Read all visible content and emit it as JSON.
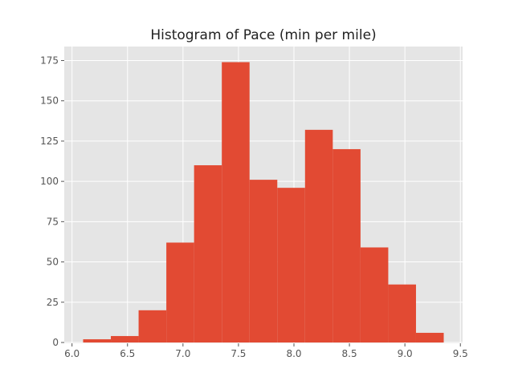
{
  "chart_data": {
    "type": "bar",
    "title": "Histogram of Pace (min per mile)",
    "xlabel": "",
    "ylabel": "",
    "xlim": [
      6.0,
      9.5
    ],
    "ylim": [
      0,
      180
    ],
    "grid": true,
    "legend": "none",
    "bins": [
      {
        "start": 6.1,
        "end": 6.35,
        "count": 2
      },
      {
        "start": 6.35,
        "end": 6.6,
        "count": 4
      },
      {
        "start": 6.6,
        "end": 6.85,
        "count": 20
      },
      {
        "start": 6.85,
        "end": 7.1,
        "count": 62
      },
      {
        "start": 7.1,
        "end": 7.35,
        "count": 110
      },
      {
        "start": 7.35,
        "end": 7.6,
        "count": 174
      },
      {
        "start": 7.6,
        "end": 7.85,
        "count": 101
      },
      {
        "start": 7.85,
        "end": 8.1,
        "count": 96
      },
      {
        "start": 8.1,
        "end": 8.35,
        "count": 132
      },
      {
        "start": 8.35,
        "end": 8.6,
        "count": 120
      },
      {
        "start": 8.6,
        "end": 8.85,
        "count": 59
      },
      {
        "start": 8.85,
        "end": 9.1,
        "count": 36
      },
      {
        "start": 9.1,
        "end": 9.35,
        "count": 6
      }
    ],
    "xticks": [
      "6.0",
      "6.5",
      "7.0",
      "7.5",
      "8.0",
      "8.5",
      "9.0",
      "9.5"
    ],
    "yticks": [
      "0",
      "25",
      "50",
      "75",
      "100",
      "125",
      "150",
      "175"
    ],
    "colors": {
      "bar": "#e24a33",
      "background": "#e5e5e5",
      "grid": "#ffffff"
    }
  }
}
